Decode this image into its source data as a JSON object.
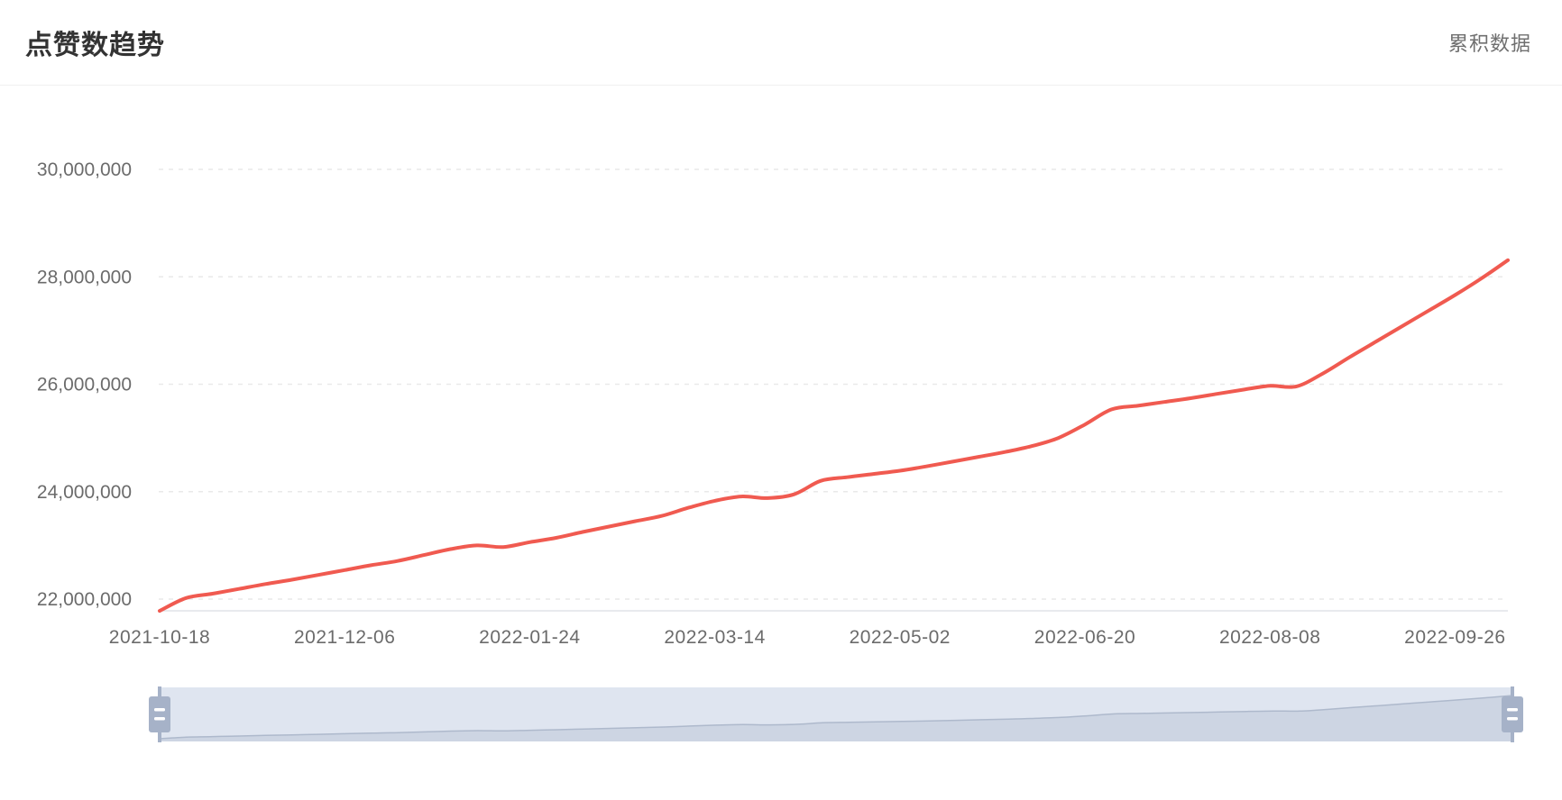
{
  "header": {
    "title": "点赞数趋势",
    "subtitle": "累积数据"
  },
  "colors": {
    "line": "#f05a50",
    "grid_line": "#e9e9e9",
    "axis_line": "#e0e3e8",
    "axis_label": "#6b6b6b",
    "title_text": "#333333",
    "subtitle_text": "#6f6f6f",
    "slider_track": "#dfe5f0",
    "slider_shadow_fill": "#cdd5e3",
    "slider_shadow_line": "#aeb9cc",
    "slider_handle": "#a6b2c8"
  },
  "chart_data": {
    "type": "line",
    "title": "点赞数趋势",
    "legend": "累积数据",
    "smooth": true,
    "grid": true,
    "legend_position": "top-right",
    "xlim": [
      "2021-10-18",
      "2022-10-10"
    ],
    "ylim": [
      21780000,
      30000000
    ],
    "y_tick_values": [
      30000000,
      28000000,
      26000000,
      24000000,
      22000000
    ],
    "y_tick_labels": [
      "30,000,000",
      "28,000,000",
      "26,000,000",
      "24,000,000",
      "22,000,000"
    ],
    "x_tick_labels": [
      "2021-10-18",
      "2021-12-06",
      "2022-01-24",
      "2022-03-14",
      "2022-05-02",
      "2022-06-20",
      "2022-08-08",
      "2022-09-26"
    ],
    "x_tick_indices": [
      0,
      7,
      14,
      21,
      28,
      35,
      42,
      49
    ],
    "x": [
      "2021-10-18",
      "2021-10-25",
      "2021-11-01",
      "2021-11-08",
      "2021-11-15",
      "2021-11-22",
      "2021-11-29",
      "2021-12-06",
      "2021-12-13",
      "2021-12-20",
      "2021-12-27",
      "2022-01-03",
      "2022-01-10",
      "2022-01-17",
      "2022-01-24",
      "2022-01-31",
      "2022-02-07",
      "2022-02-14",
      "2022-02-21",
      "2022-02-28",
      "2022-03-07",
      "2022-03-14",
      "2022-03-21",
      "2022-03-28",
      "2022-04-04",
      "2022-04-11",
      "2022-04-18",
      "2022-04-25",
      "2022-05-02",
      "2022-05-09",
      "2022-05-16",
      "2022-05-23",
      "2022-05-30",
      "2022-06-06",
      "2022-06-13",
      "2022-06-20",
      "2022-06-27",
      "2022-07-04",
      "2022-07-11",
      "2022-07-18",
      "2022-07-25",
      "2022-08-01",
      "2022-08-08",
      "2022-08-15",
      "2022-08-22",
      "2022-08-29",
      "2022-09-05",
      "2022-09-12",
      "2022-09-19",
      "2022-09-26",
      "2022-10-03",
      "2022-10-10"
    ],
    "series": [
      {
        "name": "累积数据",
        "values": [
          21780000,
          22020000,
          22100000,
          22190000,
          22280000,
          22360000,
          22450000,
          22540000,
          22630000,
          22710000,
          22820000,
          22930000,
          23000000,
          22970000,
          23060000,
          23140000,
          23250000,
          23350000,
          23450000,
          23550000,
          23700000,
          23830000,
          23910000,
          23880000,
          23950000,
          24200000,
          24270000,
          24330000,
          24390000,
          24470000,
          24560000,
          24650000,
          24740000,
          24850000,
          25000000,
          25250000,
          25530000,
          25600000,
          25670000,
          25740000,
          25820000,
          25900000,
          25970000,
          25960000,
          26200000,
          26500000,
          26790000,
          27080000,
          27370000,
          27660000,
          27970000,
          28310000
        ]
      }
    ]
  },
  "datazoom": {
    "range_start_percent": 0,
    "range_end_percent": 100
  }
}
